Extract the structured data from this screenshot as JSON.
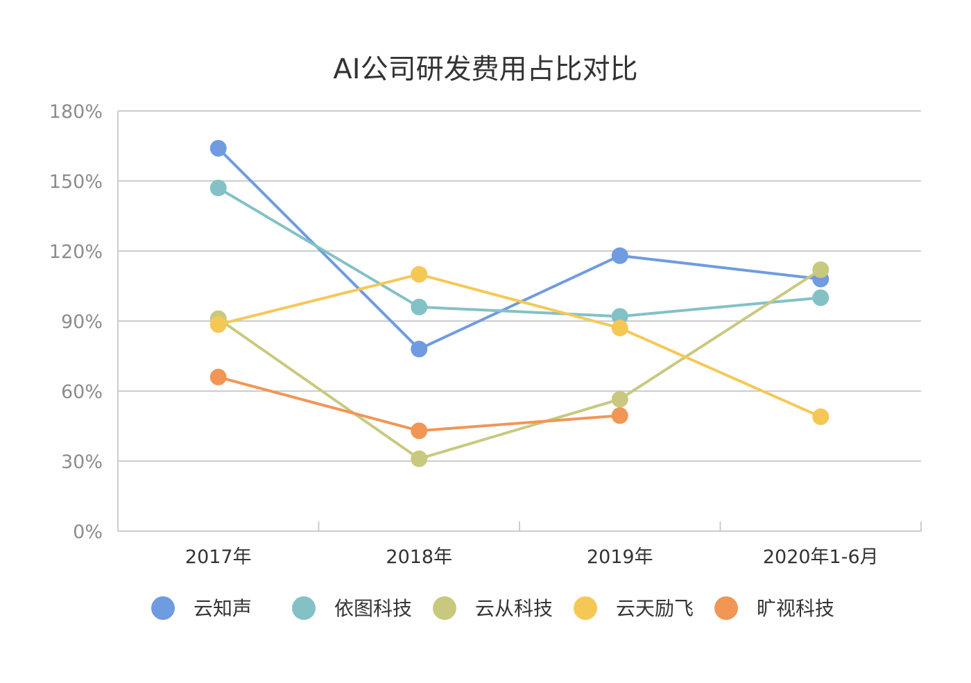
{
  "chart_data": {
    "type": "line",
    "title": "AI公司研发费用占比对比",
    "xlabel": "",
    "ylabel": "",
    "categories": [
      "2017年",
      "2018年",
      "2019年",
      "2020年1-6月"
    ],
    "y_ticks": [
      "0%",
      "30%",
      "60%",
      "90%",
      "120%",
      "150%",
      "180%"
    ],
    "ylim": [
      0,
      180
    ],
    "grid": "horizontal",
    "legend_position": "bottom",
    "series": [
      {
        "name": "云知声",
        "color": "#6f9be0",
        "values": [
          164,
          78,
          118,
          108
        ]
      },
      {
        "name": "依图科技",
        "color": "#83c1c6",
        "values": [
          147,
          96,
          92,
          100
        ]
      },
      {
        "name": "云从科技",
        "color": "#c8c97f",
        "values": [
          91,
          31,
          56.5,
          112
        ]
      },
      {
        "name": "云天励飞",
        "color": "#f5c856",
        "values": [
          88.5,
          110,
          87,
          49
        ]
      },
      {
        "name": "旷视科技",
        "color": "#f19655",
        "values": [
          66,
          43,
          49.5,
          null
        ]
      }
    ]
  }
}
